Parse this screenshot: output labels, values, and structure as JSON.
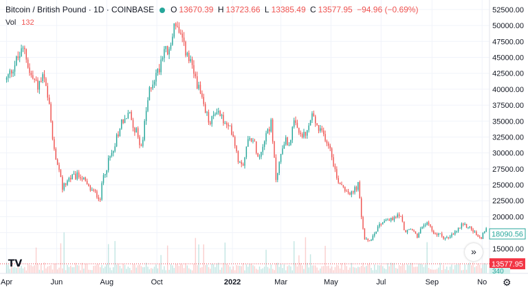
{
  "header": {
    "title": "Bitcoin / British Pound · 1D · COINBASE",
    "open_label": "O",
    "open": "13670.39",
    "high_label": "H",
    "high": "13723.66",
    "low_label": "L",
    "low": "13385.49",
    "close_label": "C",
    "close": "13577.95",
    "change": "−94.96 (−0.69%)"
  },
  "volume": {
    "label": "Vol",
    "value": "132"
  },
  "price_tags": {
    "marker_a": "18090.56",
    "last_price": "13577.95",
    "volume_tag": "340"
  },
  "colors": {
    "up": "#26a69a",
    "down": "#ef5350",
    "marker_a": "#26a69a",
    "last_price": "#f23645"
  },
  "icons": {
    "logo": "tradingview-logo-icon",
    "scroll": "double-chevron-right-icon",
    "settings": "gear-icon"
  },
  "chart_data": {
    "type": "candlestick",
    "title": "Bitcoin / British Pound · 1D · COINBASE",
    "y_ticks": [
      15000,
      17500,
      20000,
      22500,
      25000,
      27500,
      30000,
      32500,
      35000,
      37500,
      40000,
      42500,
      45000,
      47500,
      50000,
      52500
    ],
    "y_tick_labels": [
      "15000.00",
      "17500.00",
      "20000.00",
      "22500.00",
      "25000.00",
      "27500.00",
      "30000.00",
      "32500.00",
      "35000.00",
      "37500.00",
      "40000.00",
      "42500.00",
      "45000.00",
      "47500.00",
      "50000.00",
      "52500.00"
    ],
    "x_ticks": [
      "Apr",
      "Jun",
      "Aug",
      "Oct",
      "2022",
      "Mar",
      "May",
      "Jul",
      "Sep",
      "No"
    ],
    "x_tick_days": [
      0,
      61,
      122,
      183,
      275,
      334,
      395,
      456,
      518,
      579
    ],
    "ylim": [
      11100,
      54000
    ],
    "x_days_range": [
      -8,
      588
    ],
    "path_days": [
      0,
      12,
      22,
      28,
      38,
      45,
      52,
      58,
      64,
      68,
      76,
      90,
      100,
      114,
      118,
      128,
      140,
      150,
      160,
      165,
      170,
      175,
      185,
      191,
      198,
      205,
      210,
      218,
      225,
      232,
      240,
      248,
      256,
      262,
      268,
      275,
      282,
      288,
      296,
      308,
      315,
      322,
      328,
      338,
      344,
      350,
      356,
      364,
      372,
      380,
      388,
      395,
      402,
      412,
      420,
      428,
      432,
      436,
      440,
      446,
      452,
      460,
      470,
      478,
      486,
      493,
      500,
      510,
      520,
      530,
      538,
      546,
      554,
      562,
      570,
      576,
      584
    ],
    "path_closes": [
      41500,
      44500,
      46500,
      42500,
      40500,
      42000,
      37000,
      30000,
      27000,
      24500,
      26000,
      26500,
      24500,
      23000,
      26500,
      30000,
      35000,
      36000,
      32500,
      31000,
      36500,
      40500,
      43000,
      46500,
      45500,
      51000,
      48500,
      46000,
      43500,
      41000,
      37000,
      34500,
      37000,
      35500,
      34000,
      33500,
      29000,
      28500,
      33000,
      29500,
      33000,
      34500,
      26000,
      32000,
      31500,
      34500,
      33000,
      32500,
      36000,
      33500,
      32500,
      30500,
      26000,
      24500,
      23500,
      25000,
      20000,
      16500,
      16000,
      17000,
      18500,
      19500,
      19500,
      20500,
      17500,
      18000,
      17000,
      19000,
      17500,
      17000,
      16500,
      17500,
      18500,
      18500,
      17500,
      16500,
      18090
    ],
    "last_close": 13577.95,
    "volume_scale_max": 1000,
    "grid": true
  }
}
